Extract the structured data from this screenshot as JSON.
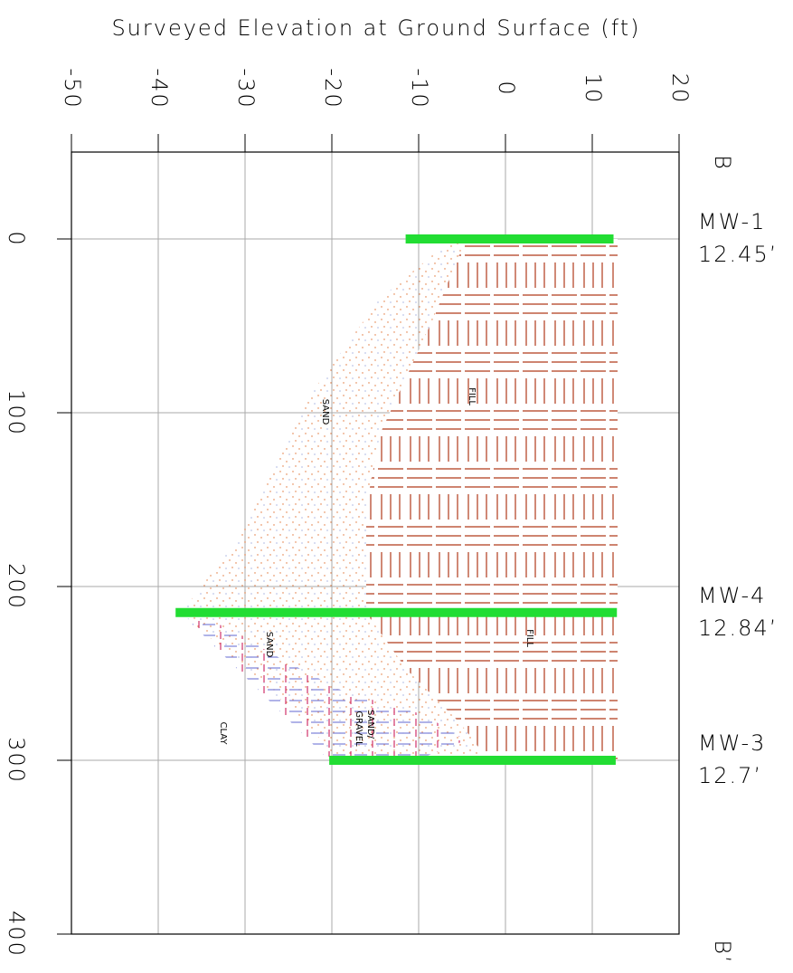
{
  "chart_data": {
    "type": "cross-section",
    "title": "Surveyed Elevation at Ground Surface (ft)",
    "section_start": "B",
    "section_end": "B’",
    "xlim": [
      -50,
      20
    ],
    "xticks": [
      -50,
      -40,
      -30,
      -20,
      -10,
      0,
      10,
      20
    ],
    "ylim": [
      -50,
      400
    ],
    "yticks": [
      0,
      100,
      200,
      300,
      400
    ],
    "grid": true,
    "wells": {
      "names": [
        "MW-1",
        "MW-4",
        "MW-3"
      ],
      "distance": [
        0,
        215,
        300
      ],
      "values": [
        12.45,
        12.84,
        12.7
      ],
      "value_labels": [
        "12.45’",
        "12.84’",
        "12.7’"
      ],
      "bottom": [
        -11.5,
        -38,
        -20.3
      ],
      "color": "#22dd33"
    },
    "layer_labels": [
      "FILL",
      "SAND",
      "FILL",
      "SAND",
      "SAND/",
      "GRAVEL",
      "CLAY"
    ]
  }
}
